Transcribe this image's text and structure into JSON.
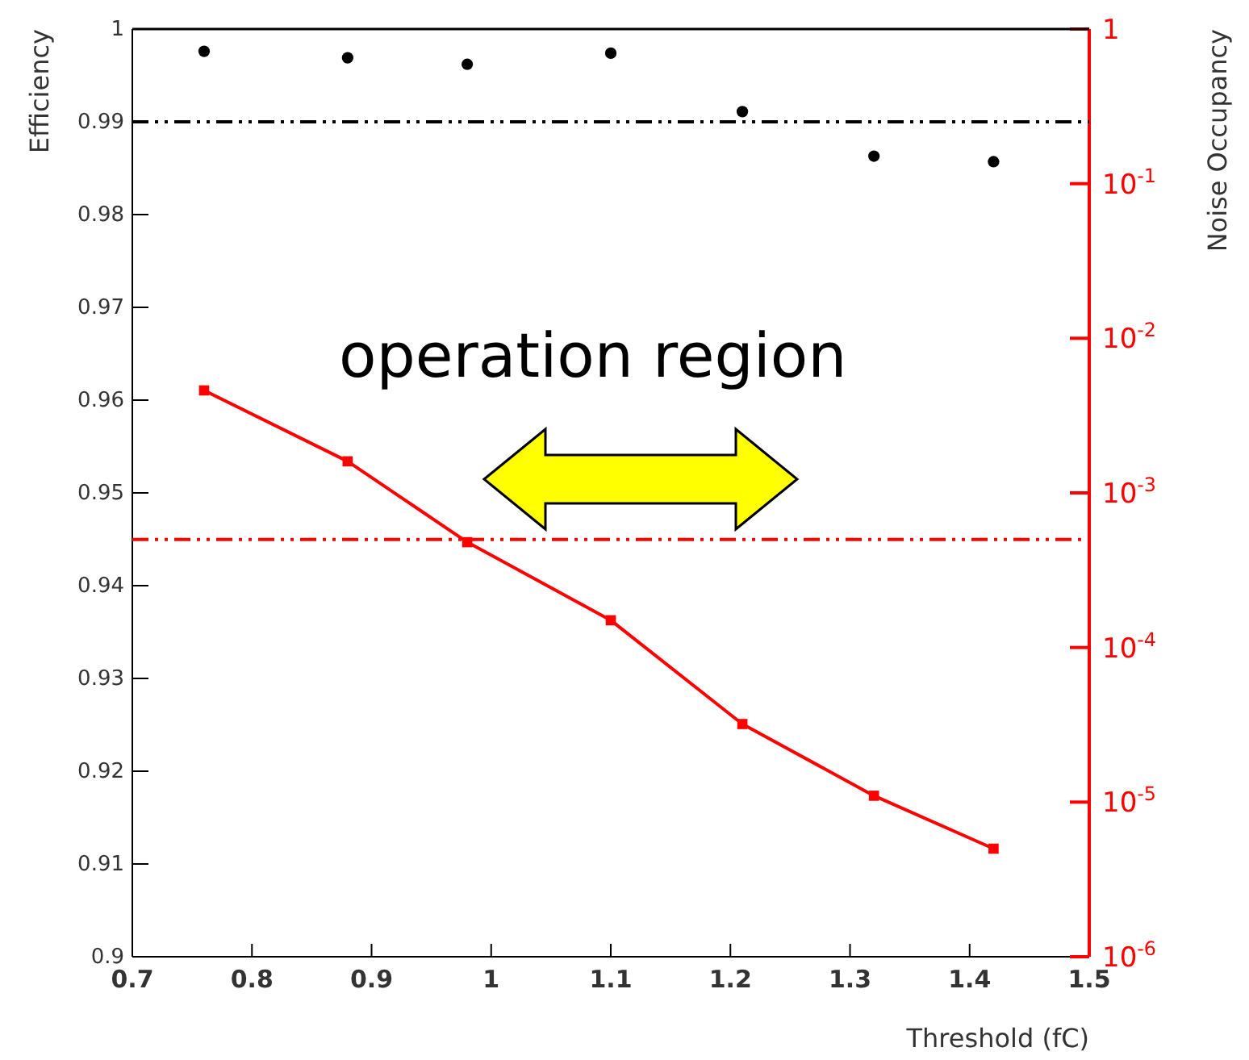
{
  "chart_data": {
    "type": "scatter",
    "xlabel": "Threshold (fC)",
    "ylabel": "Efficiency",
    "y2label": "Noise Occupancy",
    "x": [
      0.76,
      0.88,
      0.98,
      1.1,
      1.21,
      1.32,
      1.42
    ],
    "series": [
      {
        "type": "scatter",
        "color": "#000000",
        "marker": "circle",
        "values": [
          0.9976,
          0.9969,
          0.9962,
          0.9974,
          0.9911,
          0.9863,
          0.9857
        ]
      },
      {
        "type": "line",
        "axis": "y2",
        "color": "#ff0000",
        "marker": "square",
        "values": [
          0.0046,
          0.0016,
          0.00048,
          0.00015,
          3.2e-05,
          1.1e-05,
          5e-06
        ]
      }
    ],
    "xlim": [
      0.7,
      1.5
    ],
    "xticks": [
      0.7,
      0.8,
      0.9,
      1,
      1.1,
      1.2,
      1.3,
      1.4,
      1.5
    ],
    "ylim": [
      0.9,
      1
    ],
    "yticks": [
      0.9,
      0.91,
      0.92,
      0.93,
      0.94,
      0.95,
      0.96,
      0.97,
      0.98,
      0.99,
      1
    ],
    "y2lim": [
      1e-06,
      1
    ],
    "y2ticks": [
      {
        "value": 1e-06,
        "label": "10$^{-6}$"
      },
      {
        "value": 1e-05,
        "label": "10$^{-5}$"
      },
      {
        "value": 0.0001,
        "label": "10$^{-4}$"
      },
      {
        "value": 0.001,
        "label": "10$^{-3}$"
      },
      {
        "value": 0.01,
        "label": "10$^{-2}$"
      },
      {
        "value": 0.1,
        "label": "10$^{-1}$"
      },
      {
        "value": 1,
        "label": "1"
      }
    ],
    "log": "y2",
    "ref_lines": [
      {
        "axis": "y",
        "value": 0.99,
        "color": "#000000",
        "line_style": "dashed"
      },
      {
        "axis": "y2",
        "value": 0.0005,
        "color": "#ff0000",
        "line_style": "dashed"
      }
    ],
    "annotations": [
      "operation region"
    ]
  }
}
